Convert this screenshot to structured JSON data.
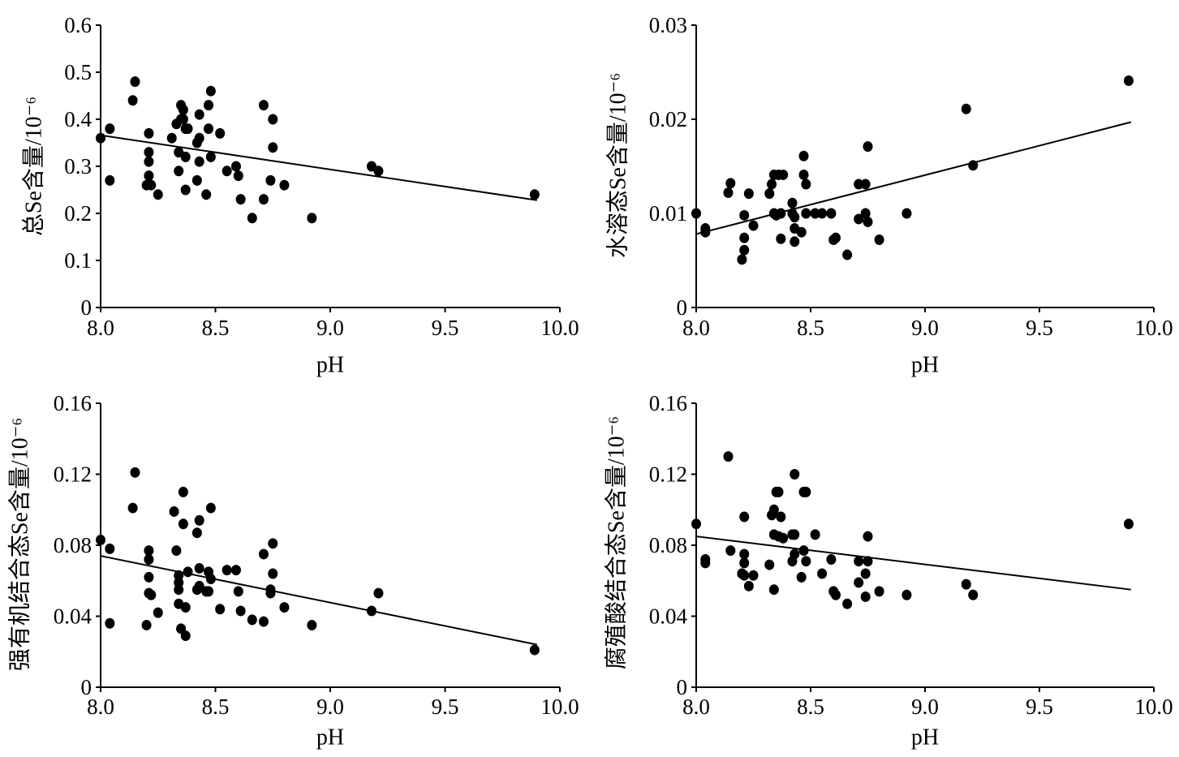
{
  "chart_data": [
    {
      "type": "scatter",
      "xlabel": "pH",
      "ylabel": "总Se含量/10⁻⁶",
      "xlim": [
        8.0,
        10.0
      ],
      "ylim": [
        0,
        0.6
      ],
      "xticks": [
        8.0,
        8.5,
        9.0,
        9.5,
        10.0
      ],
      "xtick_labels": [
        "8.0",
        "8.5",
        "9.0",
        "9.5",
        "10.0"
      ],
      "yticks": [
        0,
        0.1,
        0.2,
        0.3,
        0.4,
        0.5,
        0.6
      ],
      "ytick_labels": [
        "0",
        "0.1",
        "0.2",
        "0.3",
        "0.4",
        "0.5",
        "0.6"
      ],
      "grid": false,
      "legend": false,
      "color": "#000000",
      "points": [
        [
          8.0,
          0.36
        ],
        [
          8.04,
          0.38
        ],
        [
          8.04,
          0.27
        ],
        [
          8.14,
          0.44
        ],
        [
          8.15,
          0.48
        ],
        [
          8.21,
          0.37
        ],
        [
          8.21,
          0.33
        ],
        [
          8.21,
          0.31
        ],
        [
          8.21,
          0.28
        ],
        [
          8.2,
          0.26
        ],
        [
          8.22,
          0.26
        ],
        [
          8.25,
          0.24
        ],
        [
          8.31,
          0.36
        ],
        [
          8.33,
          0.39
        ],
        [
          8.34,
          0.33
        ],
        [
          8.34,
          0.29
        ],
        [
          8.35,
          0.43
        ],
        [
          8.35,
          0.4
        ],
        [
          8.36,
          0.42
        ],
        [
          8.36,
          0.4
        ],
        [
          8.37,
          0.38
        ],
        [
          8.37,
          0.32
        ],
        [
          8.37,
          0.25
        ],
        [
          8.38,
          0.38
        ],
        [
          8.42,
          0.27
        ],
        [
          8.42,
          0.35
        ],
        [
          8.43,
          0.41
        ],
        [
          8.43,
          0.36
        ],
        [
          8.43,
          0.31
        ],
        [
          8.46,
          0.24
        ],
        [
          8.47,
          0.43
        ],
        [
          8.47,
          0.38
        ],
        [
          8.48,
          0.46
        ],
        [
          8.48,
          0.32
        ],
        [
          8.52,
          0.37
        ],
        [
          8.55,
          0.29
        ],
        [
          8.59,
          0.3
        ],
        [
          8.6,
          0.28
        ],
        [
          8.61,
          0.23
        ],
        [
          8.66,
          0.19
        ],
        [
          8.71,
          0.43
        ],
        [
          8.71,
          0.23
        ],
        [
          8.74,
          0.27
        ],
        [
          8.75,
          0.4
        ],
        [
          8.75,
          0.34
        ],
        [
          8.8,
          0.26
        ],
        [
          8.92,
          0.19
        ],
        [
          9.18,
          0.3
        ],
        [
          9.21,
          0.29
        ],
        [
          9.89,
          0.24
        ]
      ],
      "trendline": [
        [
          8.0,
          0.366
        ],
        [
          9.9,
          0.228
        ]
      ]
    },
    {
      "type": "scatter",
      "xlabel": "pH",
      "ylabel": "水溶态Se含量/10⁻⁶",
      "xlim": [
        8.0,
        10.0
      ],
      "ylim": [
        0,
        0.03
      ],
      "xticks": [
        8.0,
        8.5,
        9.0,
        9.5,
        10.0
      ],
      "xtick_labels": [
        "8.0",
        "8.5",
        "9.0",
        "9.5",
        "10.0"
      ],
      "yticks": [
        0,
        0.01,
        0.02,
        0.03
      ],
      "ytick_labels": [
        "0",
        "0.01",
        "0.02",
        "0.03"
      ],
      "grid": false,
      "legend": false,
      "color": "#000000",
      "points": [
        [
          8.0,
          0.01
        ],
        [
          8.04,
          0.0084
        ],
        [
          8.04,
          0.008
        ],
        [
          8.14,
          0.0122
        ],
        [
          8.15,
          0.0132
        ],
        [
          8.21,
          0.0098
        ],
        [
          8.21,
          0.0074
        ],
        [
          8.21,
          0.0061
        ],
        [
          8.2,
          0.0051
        ],
        [
          8.23,
          0.0121
        ],
        [
          8.25,
          0.0087
        ],
        [
          8.32,
          0.0121
        ],
        [
          8.33,
          0.0131
        ],
        [
          8.34,
          0.0141
        ],
        [
          8.34,
          0.01
        ],
        [
          8.35,
          0.0098
        ],
        [
          8.36,
          0.0141
        ],
        [
          8.37,
          0.01
        ],
        [
          8.37,
          0.0073
        ],
        [
          8.38,
          0.0141
        ],
        [
          8.42,
          0.0111
        ],
        [
          8.42,
          0.01
        ],
        [
          8.43,
          0.0096
        ],
        [
          8.43,
          0.0084
        ],
        [
          8.43,
          0.007
        ],
        [
          8.46,
          0.008
        ],
        [
          8.47,
          0.0161
        ],
        [
          8.47,
          0.0141
        ],
        [
          8.48,
          0.0131
        ],
        [
          8.48,
          0.01
        ],
        [
          8.52,
          0.01
        ],
        [
          8.55,
          0.01
        ],
        [
          8.59,
          0.01
        ],
        [
          8.6,
          0.0072
        ],
        [
          8.61,
          0.0074
        ],
        [
          8.66,
          0.0056
        ],
        [
          8.71,
          0.0131
        ],
        [
          8.71,
          0.0094
        ],
        [
          8.74,
          0.0131
        ],
        [
          8.74,
          0.01
        ],
        [
          8.75,
          0.0091
        ],
        [
          8.75,
          0.0171
        ],
        [
          8.8,
          0.0072
        ],
        [
          8.92,
          0.01
        ],
        [
          9.18,
          0.0211
        ],
        [
          9.21,
          0.0151
        ],
        [
          9.89,
          0.0241
        ]
      ],
      "trendline": [
        [
          8.0,
          0.0078
        ],
        [
          9.9,
          0.0197
        ]
      ]
    },
    {
      "type": "scatter",
      "xlabel": "pH",
      "ylabel": "强有机结合态Se含量/10⁻⁶",
      "xlim": [
        8.0,
        10.0
      ],
      "ylim": [
        0,
        0.16
      ],
      "xticks": [
        8.0,
        8.5,
        9.0,
        9.5,
        10.0
      ],
      "xtick_labels": [
        "8.0",
        "8.5",
        "9.0",
        "9.5",
        "10.0"
      ],
      "yticks": [
        0,
        0.04,
        0.08,
        0.12,
        0.16
      ],
      "ytick_labels": [
        "0",
        "0.04",
        "0.08",
        "0.12",
        "0.16"
      ],
      "grid": false,
      "legend": false,
      "color": "#000000",
      "points": [
        [
          8.0,
          0.083
        ],
        [
          8.04,
          0.078
        ],
        [
          8.04,
          0.036
        ],
        [
          8.14,
          0.101
        ],
        [
          8.15,
          0.121
        ],
        [
          8.21,
          0.077
        ],
        [
          8.21,
          0.072
        ],
        [
          8.21,
          0.062
        ],
        [
          8.21,
          0.053
        ],
        [
          8.2,
          0.035
        ],
        [
          8.22,
          0.052
        ],
        [
          8.25,
          0.042
        ],
        [
          8.32,
          0.099
        ],
        [
          8.33,
          0.077
        ],
        [
          8.34,
          0.063
        ],
        [
          8.34,
          0.059
        ],
        [
          8.34,
          0.055
        ],
        [
          8.34,
          0.047
        ],
        [
          8.35,
          0.033
        ],
        [
          8.36,
          0.11
        ],
        [
          8.36,
          0.092
        ],
        [
          8.37,
          0.045
        ],
        [
          8.37,
          0.029
        ],
        [
          8.38,
          0.065
        ],
        [
          8.42,
          0.087
        ],
        [
          8.42,
          0.055
        ],
        [
          8.43,
          0.094
        ],
        [
          8.43,
          0.067
        ],
        [
          8.43,
          0.057
        ],
        [
          8.46,
          0.054
        ],
        [
          8.47,
          0.065
        ],
        [
          8.47,
          0.054
        ],
        [
          8.48,
          0.101
        ],
        [
          8.48,
          0.061
        ],
        [
          8.52,
          0.044
        ],
        [
          8.55,
          0.066
        ],
        [
          8.59,
          0.066
        ],
        [
          8.6,
          0.054
        ],
        [
          8.61,
          0.043
        ],
        [
          8.66,
          0.038
        ],
        [
          8.71,
          0.075
        ],
        [
          8.71,
          0.037
        ],
        [
          8.74,
          0.055
        ],
        [
          8.74,
          0.053
        ],
        [
          8.75,
          0.081
        ],
        [
          8.75,
          0.064
        ],
        [
          8.8,
          0.045
        ],
        [
          8.92,
          0.035
        ],
        [
          9.18,
          0.043
        ],
        [
          9.21,
          0.053
        ],
        [
          9.89,
          0.021
        ]
      ],
      "trendline": [
        [
          8.0,
          0.074
        ],
        [
          9.9,
          0.024
        ]
      ]
    },
    {
      "type": "scatter",
      "xlabel": "pH",
      "ylabel": "腐殖酸结合态Se含量/10⁻⁶",
      "xlim": [
        8.0,
        10.0
      ],
      "ylim": [
        0,
        0.16
      ],
      "xticks": [
        8.0,
        8.5,
        9.0,
        9.5,
        10.0
      ],
      "xtick_labels": [
        "8.0",
        "8.5",
        "9.0",
        "9.5",
        "10.0"
      ],
      "yticks": [
        0,
        0.04,
        0.08,
        0.12,
        0.16
      ],
      "ytick_labels": [
        "0",
        "0.04",
        "0.08",
        "0.12",
        "0.16"
      ],
      "grid": false,
      "legend": false,
      "color": "#000000",
      "points": [
        [
          8.0,
          0.092
        ],
        [
          8.04,
          0.072
        ],
        [
          8.04,
          0.07
        ],
        [
          8.14,
          0.13
        ],
        [
          8.15,
          0.077
        ],
        [
          8.21,
          0.096
        ],
        [
          8.21,
          0.075
        ],
        [
          8.21,
          0.07
        ],
        [
          8.2,
          0.064
        ],
        [
          8.21,
          0.063
        ],
        [
          8.23,
          0.057
        ],
        [
          8.25,
          0.063
        ],
        [
          8.32,
          0.069
        ],
        [
          8.33,
          0.097
        ],
        [
          8.34,
          0.1
        ],
        [
          8.34,
          0.086
        ],
        [
          8.34,
          0.055
        ],
        [
          8.35,
          0.11
        ],
        [
          8.36,
          0.11
        ],
        [
          8.36,
          0.085
        ],
        [
          8.37,
          0.096
        ],
        [
          8.38,
          0.084
        ],
        [
          8.42,
          0.086
        ],
        [
          8.42,
          0.071
        ],
        [
          8.43,
          0.12
        ],
        [
          8.43,
          0.086
        ],
        [
          8.43,
          0.075
        ],
        [
          8.46,
          0.062
        ],
        [
          8.47,
          0.11
        ],
        [
          8.47,
          0.077
        ],
        [
          8.48,
          0.11
        ],
        [
          8.48,
          0.071
        ],
        [
          8.52,
          0.086
        ],
        [
          8.55,
          0.064
        ],
        [
          8.59,
          0.072
        ],
        [
          8.6,
          0.054
        ],
        [
          8.61,
          0.052
        ],
        [
          8.66,
          0.047
        ],
        [
          8.71,
          0.071
        ],
        [
          8.71,
          0.059
        ],
        [
          8.74,
          0.064
        ],
        [
          8.74,
          0.051
        ],
        [
          8.75,
          0.085
        ],
        [
          8.75,
          0.071
        ],
        [
          8.8,
          0.054
        ],
        [
          8.92,
          0.052
        ],
        [
          9.18,
          0.058
        ],
        [
          9.21,
          0.052
        ],
        [
          9.89,
          0.092
        ]
      ],
      "trendline": [
        [
          8.0,
          0.085
        ],
        [
          9.9,
          0.055
        ]
      ]
    }
  ]
}
